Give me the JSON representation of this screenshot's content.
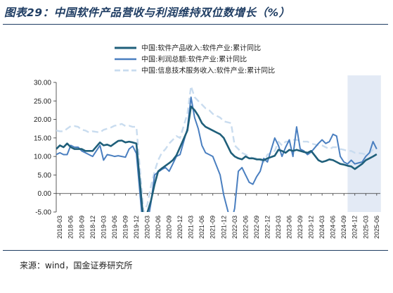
{
  "title": "图表29：中国软件产品营收与利润维持双位数增长（%）",
  "source": "来源：wind，国金证券研究所",
  "colors": {
    "title": "#1f3d63",
    "series_revenue": "#1f5f7a",
    "series_profit": "#4a7fc0",
    "series_infotech": "#c9dcef",
    "shade": "#e3eaf5"
  },
  "chart_data": {
    "type": "line",
    "ylim": [
      -5,
      30
    ],
    "yticks": [
      "-5.00",
      "0.00",
      "5.00",
      "10.00",
      "15.00",
      "20.00",
      "25.00",
      "30.00"
    ],
    "xticks": [
      "2018-03",
      "2018-06",
      "2018-09",
      "2018-12",
      "2019-03",
      "2019-06",
      "2019-09",
      "2019-12",
      "2020-03",
      "2020-06",
      "2020-09",
      "2020-12",
      "2021-03",
      "2021-06",
      "2021-09",
      "2021-12",
      "2022-03",
      "2022-06",
      "2022-09",
      "2022-12",
      "2023-03",
      "2023-06",
      "2023-09",
      "2023-12",
      "2024-03",
      "2024-06",
      "2024-09",
      "2024-12",
      "2025-03",
      "2025-06"
    ],
    "highlight_range": [
      "2024-10",
      "2025-06"
    ],
    "legend_position": "top",
    "grid": false,
    "series": [
      {
        "name": "中国:软件产品收入:软件产业:累计同比",
        "color": "#1f5f7a",
        "style": "solid-thick",
        "x": [
          "2018-02",
          "2018-03",
          "2018-04",
          "2018-05",
          "2018-06",
          "2018-07",
          "2018-08",
          "2018-09",
          "2018-10",
          "2018-11",
          "2018-12",
          "2019-02",
          "2019-03",
          "2019-04",
          "2019-05",
          "2019-06",
          "2019-07",
          "2019-08",
          "2019-09",
          "2019-10",
          "2019-11",
          "2019-12",
          "2020-02",
          "2020-03",
          "2020-04",
          "2020-05",
          "2020-06",
          "2020-07",
          "2020-08",
          "2020-09",
          "2020-10",
          "2020-11",
          "2020-12",
          "2021-02",
          "2021-03",
          "2021-04",
          "2021-05",
          "2021-06",
          "2021-07",
          "2021-08",
          "2021-09",
          "2021-10",
          "2021-11",
          "2021-12",
          "2022-02",
          "2022-03",
          "2022-04",
          "2022-05",
          "2022-06",
          "2022-07",
          "2022-08",
          "2022-09",
          "2022-10",
          "2022-11",
          "2022-12",
          "2023-02",
          "2023-03",
          "2023-04",
          "2023-05",
          "2023-06",
          "2023-07",
          "2023-08",
          "2023-09",
          "2023-10",
          "2023-11",
          "2023-12",
          "2024-02",
          "2024-03",
          "2024-04",
          "2024-05",
          "2024-06",
          "2024-07",
          "2024-08",
          "2024-09",
          "2024-10",
          "2024-11",
          "2024-12",
          "2025-02",
          "2025-03",
          "2025-04",
          "2025-05",
          "2025-06"
        ],
        "values": [
          12.0,
          13.0,
          12.5,
          13.5,
          12.5,
          12.0,
          12.0,
          12.0,
          11.5,
          11.5,
          11.5,
          13.8,
          13.0,
          13.2,
          12.8,
          13.5,
          14.2,
          14.3,
          13.8,
          14.0,
          13.8,
          13.5,
          -8.0,
          -5.2,
          -2.0,
          2.5,
          6.0,
          6.8,
          7.5,
          8.2,
          9.0,
          10.3,
          12.5,
          17.0,
          23.5,
          22.5,
          21.0,
          19.0,
          18.0,
          17.5,
          17.0,
          16.5,
          16.0,
          15.0,
          11.0,
          10.0,
          9.5,
          9.2,
          10.0,
          9.5,
          9.5,
          9.2,
          9.2,
          9.0,
          9.5,
          10.2,
          11.8,
          11.5,
          11.0,
          11.8,
          11.5,
          11.8,
          11.5,
          11.2,
          11.0,
          11.5,
          9.0,
          8.5,
          8.8,
          9.2,
          9.0,
          8.5,
          8.0,
          7.8,
          7.5,
          7.3,
          6.6,
          8.0,
          9.0,
          9.5,
          10.0,
          10.6
        ]
      },
      {
        "name": "中国:利润总额:软件产业:累计同比",
        "color": "#4a7fc0",
        "style": "solid",
        "x": [
          "2018-02",
          "2018-03",
          "2018-04",
          "2018-05",
          "2018-06",
          "2018-07",
          "2018-08",
          "2018-09",
          "2018-10",
          "2018-11",
          "2018-12",
          "2019-02",
          "2019-03",
          "2019-04",
          "2019-05",
          "2019-06",
          "2019-07",
          "2019-08",
          "2019-09",
          "2019-10",
          "2019-11",
          "2019-12",
          "2020-02",
          "2020-03",
          "2020-04",
          "2020-05",
          "2020-06",
          "2020-07",
          "2020-08",
          "2020-09",
          "2020-10",
          "2020-11",
          "2020-12",
          "2021-02",
          "2021-03",
          "2021-04",
          "2021-05",
          "2021-06",
          "2021-07",
          "2021-08",
          "2021-09",
          "2021-10",
          "2021-11",
          "2021-12",
          "2022-02",
          "2022-03",
          "2022-04",
          "2022-05",
          "2022-06",
          "2022-07",
          "2022-08",
          "2022-09",
          "2022-10",
          "2022-11",
          "2022-12",
          "2023-02",
          "2023-03",
          "2023-04",
          "2023-05",
          "2023-06",
          "2023-07",
          "2023-08",
          "2023-09",
          "2023-10",
          "2023-11",
          "2023-12",
          "2024-02",
          "2024-03",
          "2024-04",
          "2024-05",
          "2024-06",
          "2024-07",
          "2024-08",
          "2024-09",
          "2024-10",
          "2024-11",
          "2024-12",
          "2025-02",
          "2025-03",
          "2025-04",
          "2025-05",
          "2025-06"
        ],
        "values": [
          10.5,
          11.0,
          10.5,
          10.5,
          13.0,
          12.5,
          12.5,
          11.5,
          11.0,
          10.5,
          10.0,
          13.0,
          9.0,
          10.5,
          10.3,
          10.0,
          10.2,
          10.0,
          9.8,
          12.0,
          12.8,
          10.8,
          -11.0,
          -8.5,
          -2.5,
          5.0,
          5.8,
          6.5,
          7.0,
          6.0,
          8.0,
          10.0,
          10.5,
          17.5,
          26.0,
          20.5,
          17.5,
          13.0,
          11.0,
          10.5,
          10.0,
          7.5,
          5.0,
          -0.5,
          -8.0,
          -4.0,
          6.0,
          7.0,
          5.0,
          3.0,
          2.5,
          4.5,
          6.0,
          9.5,
          8.5,
          15.0,
          13.0,
          10.0,
          12.5,
          14.5,
          10.0,
          18.0,
          12.0,
          11.5,
          10.5,
          11.2,
          13.5,
          14.5,
          13.5,
          14.0,
          16.0,
          15.5,
          10.0,
          8.5,
          8.0,
          9.0,
          8.0,
          8.5,
          10.0,
          11.0,
          14.0,
          12.0
        ]
      },
      {
        "name": "中国:信息技术服务收入:软件产业:累计同比",
        "color": "#c9dcef",
        "style": "dashed",
        "x": [
          "2018-02",
          "2018-03",
          "2018-04",
          "2018-05",
          "2018-06",
          "2018-07",
          "2018-08",
          "2018-09",
          "2018-10",
          "2018-11",
          "2018-12",
          "2019-02",
          "2019-03",
          "2019-04",
          "2019-05",
          "2019-06",
          "2019-07",
          "2019-08",
          "2019-09",
          "2019-10",
          "2019-11",
          "2019-12",
          "2020-02",
          "2020-03",
          "2020-04",
          "2020-05",
          "2020-06",
          "2020-07",
          "2020-08",
          "2020-09",
          "2020-10",
          "2020-11",
          "2020-12",
          "2021-02",
          "2021-03",
          "2021-04",
          "2021-05",
          "2021-06",
          "2021-07",
          "2021-08",
          "2021-09",
          "2021-10",
          "2021-11",
          "2021-12",
          "2022-02",
          "2022-03",
          "2022-04",
          "2022-05",
          "2022-06",
          "2022-07",
          "2022-08",
          "2022-09",
          "2022-10",
          "2022-11",
          "2022-12",
          "2023-02",
          "2023-03",
          "2023-04",
          "2023-05",
          "2023-06",
          "2023-07",
          "2023-08",
          "2023-09",
          "2023-10",
          "2023-11",
          "2023-12",
          "2024-02",
          "2024-03",
          "2024-04",
          "2024-05",
          "2024-06",
          "2024-07",
          "2024-08",
          "2024-09",
          "2024-10",
          "2024-11",
          "2024-12",
          "2025-02",
          "2025-03",
          "2025-04",
          "2025-05",
          "2025-06"
        ],
        "values": [
          17.0,
          16.8,
          16.8,
          17.5,
          18.2,
          18.2,
          18.0,
          17.2,
          17.0,
          16.5,
          16.8,
          16.5,
          17.2,
          17.5,
          17.8,
          18.3,
          18.5,
          18.8,
          18.2,
          18.3,
          18.0,
          18.0,
          -5.0,
          -3.0,
          2.0,
          6.0,
          9.0,
          11.0,
          12.0,
          13.5,
          14.5,
          15.5,
          15.0,
          21.5,
          29.0,
          26.0,
          25.0,
          24.0,
          23.0,
          22.5,
          21.5,
          21.0,
          20.5,
          19.5,
          19.0,
          13.0,
          12.0,
          11.0,
          10.5,
          10.0,
          9.5,
          9.5,
          9.0,
          8.5,
          10.5,
          11.5,
          14.0,
          13.0,
          14.0,
          14.0,
          14.5,
          14.5,
          14.2,
          14.0,
          14.0,
          13.5,
          13.0,
          13.0,
          12.5,
          12.0,
          12.5,
          12.5,
          12.0,
          11.8,
          11.5,
          11.5,
          11.0,
          10.8,
          10.5,
          11.0,
          11.8,
          12.0
        ]
      }
    ]
  }
}
